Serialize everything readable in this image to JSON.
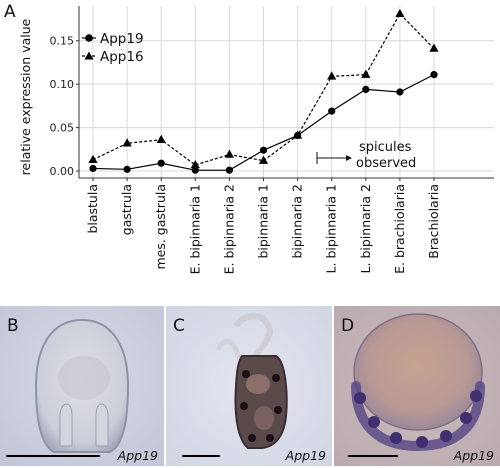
{
  "panel_a_label": "A",
  "chart_data": {
    "type": "line",
    "ylabel": "relative expression value",
    "categories": [
      "blastula",
      "gastrula",
      "mes. gastrula",
      "E. bipinnaria 1",
      "E. bipinnaria 2",
      "bipinnaria 1",
      "bipinnaria 2",
      "L. bipinnaria 1",
      "L. bipinnaria 2",
      "E. brachiolaria",
      "Brachiolaria"
    ],
    "series": [
      {
        "name": "App19",
        "marker": "circle",
        "line": "solid",
        "values": [
          0.003,
          0.002,
          0.009,
          0.001,
          0.001,
          0.024,
          0.041,
          0.069,
          0.094,
          0.091,
          0.111
        ]
      },
      {
        "name": "App16",
        "marker": "triangle",
        "line": "dashed",
        "values": [
          0.013,
          0.032,
          0.036,
          0.007,
          0.019,
          0.012,
          0.041,
          0.109,
          0.111,
          0.181,
          0.141
        ]
      }
    ],
    "ylim": [
      -0.008,
      0.19
    ],
    "yticks": [
      0.0,
      0.05,
      0.1,
      0.15
    ],
    "ytick_labels": [
      "0.00",
      "0.05",
      "0.10",
      "0.15"
    ],
    "grid": true,
    "legend_position": "top-left",
    "annotation": {
      "text_line1": "spicules",
      "text_line2": "observed",
      "start_category": "bipinnaria 2"
    }
  },
  "photos": [
    {
      "letter": "B",
      "label": "App19"
    },
    {
      "letter": "C",
      "label": "App19"
    },
    {
      "letter": "D",
      "label": "App19"
    }
  ]
}
